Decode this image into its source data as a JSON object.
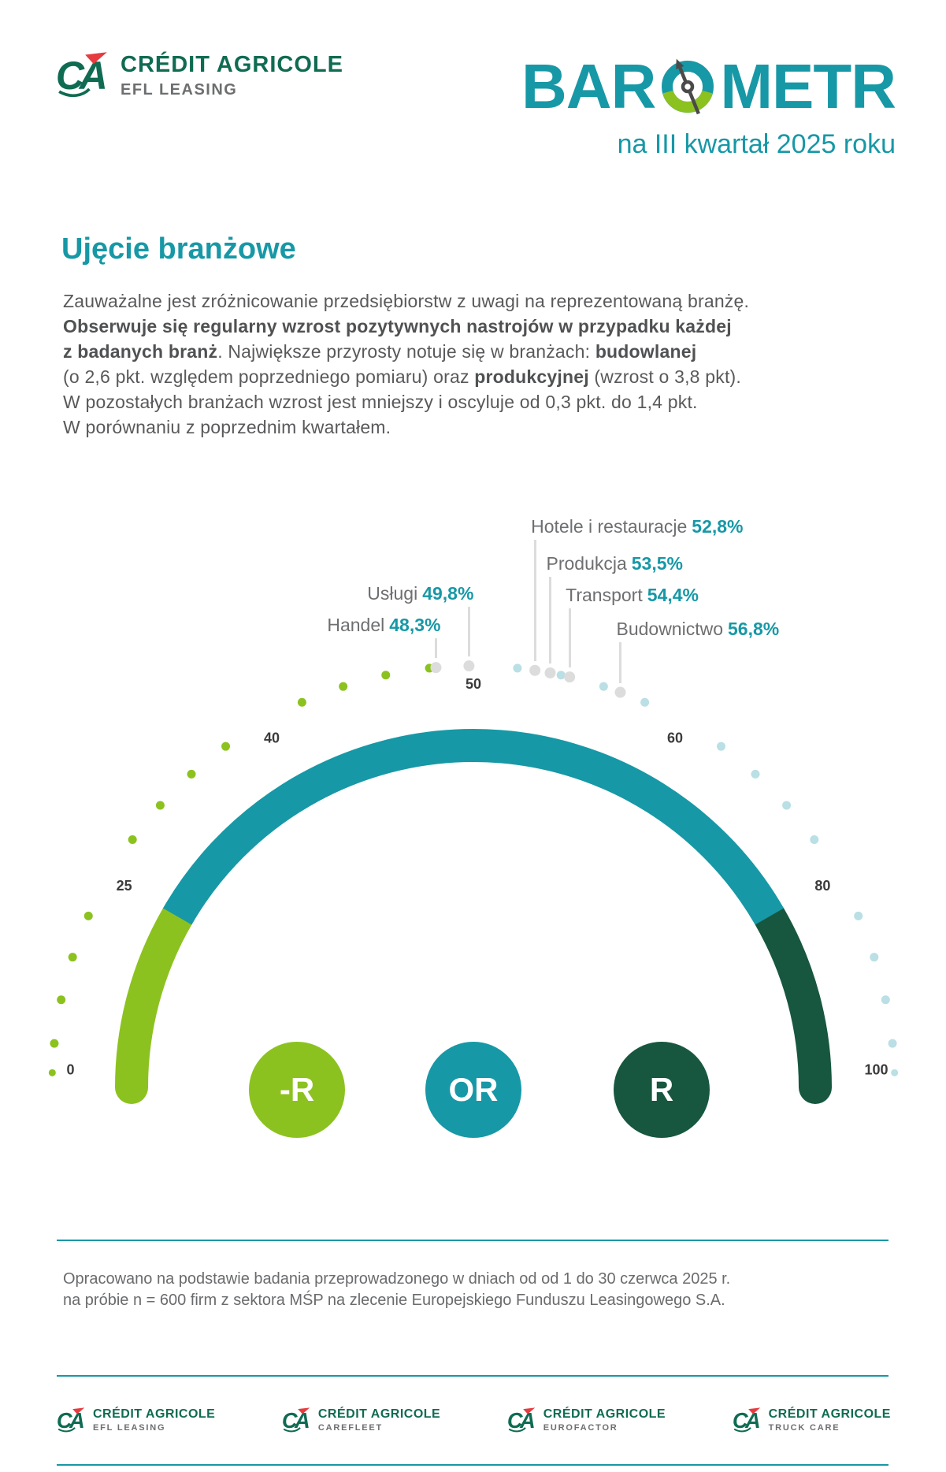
{
  "header": {
    "logo": {
      "brand": "CRÉDIT AGRICOLE",
      "sub": "EFL LEASING"
    },
    "title": {
      "pre": "BAR",
      "post": "METR",
      "full": "BAROMETR"
    },
    "subtitle": "na III kwartał 2025 roku"
  },
  "section": {
    "heading": "Ujęcie branżowe",
    "paragraph_lines": [
      [
        {
          "t": "Zauważalne jest zróżnicowanie przedsiębiorstw z uwagi na reprezentowaną branżę.",
          "b": false
        }
      ],
      [
        {
          "t": "Obserwuje się regularny wzrost pozytywnych nastrojów w przypadku każdej",
          "b": true
        }
      ],
      [
        {
          "t": "z badanych branż",
          "b": true
        },
        {
          "t": ". Największe przyrosty notuje się w branżach: ",
          "b": false
        },
        {
          "t": "budowlanej",
          "b": true
        }
      ],
      [
        {
          "t": "(o 2,6 pkt. względem poprzedniego pomiaru) oraz ",
          "b": false
        },
        {
          "t": "produkcyjnej",
          "b": true
        },
        {
          "t": " (wzrost o 3,8 pkt).",
          "b": false
        }
      ],
      [
        {
          "t": "W pozostałych branżach wzrost jest mniejszy i oscyluje od 0,3 pkt. do 1,4 pkt.",
          "b": false
        }
      ],
      [
        {
          "t": "W porównaniu z poprzednim kwartałem.",
          "b": false
        }
      ]
    ]
  },
  "chart_data": {
    "type": "gauge",
    "scale_ticks": [
      0,
      25,
      40,
      50,
      60,
      80,
      100
    ],
    "tick_labels": [
      "0",
      "25",
      "40",
      "50",
      "60",
      "80",
      "100"
    ],
    "angle_span_deg": [
      180,
      0
    ],
    "arc_segments": [
      {
        "from": 0,
        "to": 25,
        "color": "#8cc21f"
      },
      {
        "from": 25,
        "to": 80,
        "color": "#1798a6"
      },
      {
        "from": 80,
        "to": 100,
        "color": "#17573f"
      }
    ],
    "industries": [
      {
        "name": "Handel",
        "value": 48.3,
        "value_label": "48,3%"
      },
      {
        "name": "Usługi",
        "value": 49.8,
        "value_label": "49,8%"
      },
      {
        "name": "Hotele i restauracje",
        "value": 52.8,
        "value_label": "52,8%"
      },
      {
        "name": "Produkcja",
        "value": 53.5,
        "value_label": "53,5%"
      },
      {
        "name": "Transport",
        "value": 54.4,
        "value_label": "54,4%"
      },
      {
        "name": "Budownictwo",
        "value": 56.8,
        "value_label": "56,8%"
      }
    ],
    "legend": [
      {
        "label": "-R",
        "color": "#8cc21f"
      },
      {
        "label": "OR",
        "color": "#1798a6"
      },
      {
        "label": "R",
        "color": "#17573f"
      }
    ]
  },
  "footer": {
    "note_lines": [
      "Opracowano na podstawie badania przeprowadzonego w dniach od od 1 do 30 czerwca 2025 r.",
      "na próbie n = 600 firm z sektora MŚP na zlecenie Europejskiego Funduszu Leasingowego S.A."
    ],
    "brand": "CRÉDIT AGRICOLE",
    "logos": [
      {
        "sub": "EFL LEASING"
      },
      {
        "sub": "CAREFLEET"
      },
      {
        "sub": "EUROFACTOR"
      },
      {
        "sub": "TRUCK CARE"
      }
    ]
  },
  "colors": {
    "teal": "#1798a6",
    "green": "#8cc21f",
    "dark_green": "#17573f",
    "pale_blue": "#badfe4",
    "dot_gray": "#dcdcdc",
    "tick_text": "#3b3b3c",
    "body_text": "#59595b",
    "label_gray": "#6e6f71",
    "logo_green": "#0f6b52",
    "logo_red": "#e63c40",
    "logo_sub_gray": "#6d6e70",
    "needle_gray": "#4a4a4b"
  }
}
